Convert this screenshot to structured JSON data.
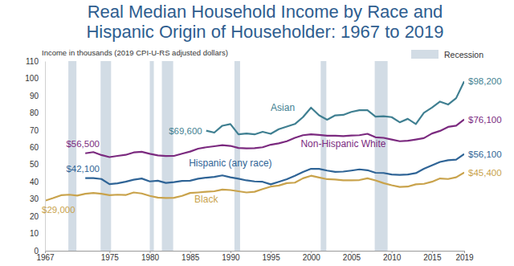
{
  "chart_data": {
    "type": "line",
    "title": [
      "Real Median Household Income by Race and",
      "Hispanic Origin of Householder: 1967 to 2019"
    ],
    "ylabel": "Income in thousands (2019 CPI-U-RS adjusted dollars)",
    "x": [
      1967,
      1968,
      1969,
      1970,
      1971,
      1972,
      1973,
      1974,
      1975,
      1976,
      1977,
      1978,
      1979,
      1980,
      1981,
      1982,
      1983,
      1984,
      1985,
      1986,
      1987,
      1988,
      1989,
      1990,
      1991,
      1992,
      1993,
      1994,
      1995,
      1996,
      1997,
      1998,
      1999,
      2000,
      2001,
      2002,
      2003,
      2004,
      2005,
      2006,
      2007,
      2008,
      2009,
      2010,
      2011,
      2012,
      2013,
      2014,
      2015,
      2016,
      2017,
      2018,
      2019
    ],
    "xlim": [
      1967,
      2019
    ],
    "xticks": [
      1967,
      1975,
      1980,
      1985,
      1990,
      1995,
      2000,
      2005,
      2010,
      2015,
      2019
    ],
    "ylim": [
      0,
      110
    ],
    "yticks": [
      0,
      10,
      20,
      30,
      40,
      50,
      60,
      70,
      80,
      90,
      100,
      110
    ],
    "grid": false,
    "series": [
      {
        "name": "Asian",
        "color": "#3f7f91",
        "values": [
          null,
          null,
          null,
          null,
          null,
          null,
          null,
          null,
          null,
          null,
          null,
          null,
          null,
          null,
          null,
          null,
          null,
          null,
          null,
          null,
          69.6,
          68.5,
          72.5,
          73.5,
          67.5,
          68.0,
          67.5,
          69.0,
          67.8,
          70.5,
          72.0,
          73.5,
          77.5,
          83.0,
          78.5,
          76.0,
          78.5,
          78.8,
          80.5,
          81.5,
          81.5,
          77.8,
          78.0,
          77.5,
          74.5,
          76.5,
          73.5,
          80.0,
          83.0,
          86.5,
          84.8,
          88.5,
          98.2
        ]
      },
      {
        "name": "Non-Hispanic White",
        "color": "#7b2a7f",
        "values": [
          null,
          null,
          null,
          null,
          null,
          56.5,
          57.2,
          55.5,
          54.3,
          55.0,
          55.6,
          57.0,
          57.4,
          56.2,
          55.3,
          54.9,
          55.0,
          56.3,
          57.5,
          59.2,
          60.0,
          60.6,
          61.2,
          60.8,
          59.6,
          59.4,
          59.5,
          60.0,
          61.5,
          62.3,
          63.5,
          65.5,
          67.0,
          67.5,
          67.2,
          66.7,
          66.7,
          66.5,
          66.8,
          67.0,
          67.8,
          65.8,
          65.5,
          64.5,
          63.5,
          63.8,
          64.5,
          65.3,
          68.0,
          69.5,
          71.8,
          72.5,
          76.1
        ]
      },
      {
        "name": "Hispanic (any race)",
        "color": "#2f6496",
        "values": [
          null,
          null,
          null,
          null,
          null,
          42.1,
          42.1,
          41.6,
          38.6,
          39.1,
          40.0,
          41.2,
          41.9,
          40.2,
          40.6,
          39.3,
          39.8,
          40.5,
          40.6,
          41.8,
          42.4,
          42.8,
          43.7,
          42.6,
          41.8,
          40.8,
          40.2,
          40.0,
          38.5,
          40.0,
          41.5,
          43.5,
          45.7,
          47.5,
          47.5,
          46.5,
          45.7,
          45.9,
          46.5,
          47.2,
          46.7,
          45.2,
          45.1,
          44.2,
          44.0,
          44.2,
          45.0,
          47.5,
          49.5,
          51.5,
          52.5,
          52.8,
          56.1
        ]
      },
      {
        "name": "Black",
        "color": "#c9a34c",
        "values": [
          29.0,
          30.5,
          32.2,
          32.5,
          32.0,
          33.0,
          33.5,
          33.0,
          32.2,
          32.5,
          32.3,
          33.8,
          33.2,
          31.8,
          30.8,
          30.6,
          30.7,
          31.8,
          33.5,
          33.8,
          34.2,
          34.5,
          35.5,
          35.2,
          34.5,
          33.8,
          34.2,
          35.8,
          37.2,
          37.8,
          39.2,
          39.5,
          42.0,
          43.5,
          42.5,
          41.5,
          41.3,
          40.8,
          40.8,
          41.0,
          42.0,
          40.8,
          39.2,
          38.0,
          37.0,
          37.2,
          38.5,
          38.8,
          40.0,
          41.9,
          41.6,
          42.6,
          45.4
        ]
      }
    ],
    "recessions": {
      "name": "Recession",
      "color": "#d2dce5",
      "ranges": [
        [
          1969.9,
          1970.9
        ],
        [
          1973.9,
          1975.2
        ],
        [
          1980.0,
          1980.5
        ],
        [
          1981.5,
          1982.9
        ],
        [
          1990.5,
          1991.2
        ],
        [
          2001.2,
          2001.9
        ],
        [
          2007.9,
          2009.5
        ]
      ]
    },
    "annotations": [
      {
        "text": "$98,200",
        "x": 2019,
        "y": 98.2
      },
      {
        "text": "$76,100",
        "x": 2019,
        "y": 76.1
      },
      {
        "text": "$56,100",
        "x": 2019,
        "y": 56.1
      },
      {
        "text": "$45,400",
        "x": 2019,
        "y": 45.4
      },
      {
        "text": "$69,600",
        "x": 1987,
        "y": 69.6
      },
      {
        "text": "$56,500",
        "x": 1972,
        "y": 56.5
      },
      {
        "text": "$42,100",
        "x": 1972,
        "y": 42.1
      },
      {
        "text": "$29,000",
        "x": 1967,
        "y": 29.0
      }
    ]
  }
}
